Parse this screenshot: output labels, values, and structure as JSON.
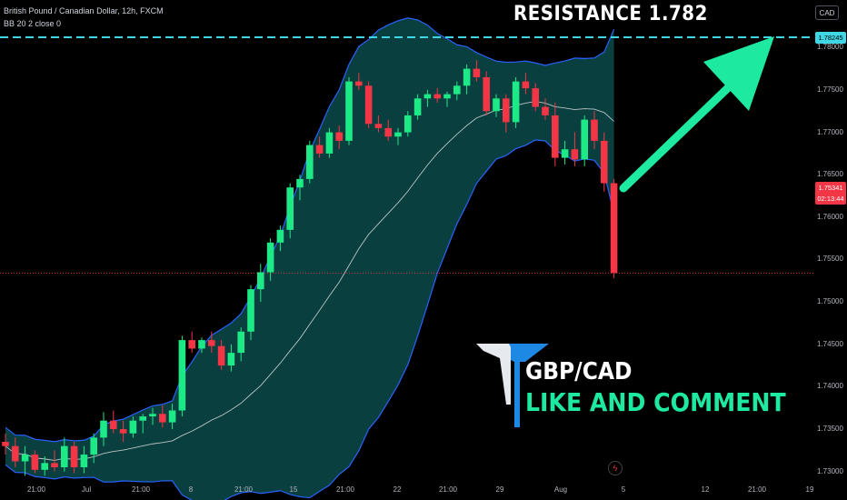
{
  "header": {
    "symbol_title": "British Pound / Canadian Dollar, 12h, FXCM",
    "indicator_title": "BB 20 2 close 0"
  },
  "currency_button": "CAD",
  "annotation": {
    "resistance_label": "RESISTANCE  1.782",
    "pair_label": "GBP/CAD",
    "call_to_action": "LIKE AND COMMENT"
  },
  "price_labels": {
    "resistance_value": "1.78245",
    "current_price": "1.75341",
    "countdown": "02:13:44"
  },
  "colors": {
    "up": "#1de986",
    "down": "#f23645",
    "band_fill": "#0c4a4a",
    "band_line": "#2962ff",
    "resistance_line": "#3fd6e6",
    "arrow": "#1de9a0"
  },
  "chart_data": {
    "type": "candlestick",
    "y_ticks": [
      "1.78000",
      "1.77500",
      "1.77000",
      "1.76500",
      "1.76000",
      "1.75500",
      "1.75000",
      "1.74500",
      "1.74000",
      "1.73500",
      "1.73000"
    ],
    "x_ticks": [
      "21:00",
      "Jul",
      "21:00",
      "8",
      "21:00",
      "15",
      "21:00",
      "22",
      "21:00",
      "29",
      "Aug",
      "5",
      "12",
      "21:00",
      "19"
    ],
    "ylim": [
      1.729,
      1.784
    ],
    "resistance": 1.78245,
    "last_price": 1.75341,
    "candles": [
      [
        1.7335,
        1.7345,
        1.732,
        1.733
      ],
      [
        1.733,
        1.734,
        1.7305,
        1.7312
      ],
      [
        1.7312,
        1.733,
        1.7295,
        1.732
      ],
      [
        1.732,
        1.7325,
        1.7298,
        1.7302
      ],
      [
        1.7302,
        1.7318,
        1.7295,
        1.731
      ],
      [
        1.731,
        1.7325,
        1.73,
        1.7305
      ],
      [
        1.7305,
        1.734,
        1.73,
        1.733
      ],
      [
        1.733,
        1.7335,
        1.7298,
        1.7305
      ],
      [
        1.7305,
        1.733,
        1.7298,
        1.732
      ],
      [
        1.732,
        1.7345,
        1.731,
        1.734
      ],
      [
        1.734,
        1.737,
        1.733,
        1.736
      ],
      [
        1.736,
        1.7372,
        1.7345,
        1.735
      ],
      [
        1.735,
        1.736,
        1.7335,
        1.7345
      ],
      [
        1.7345,
        1.7365,
        1.734,
        1.736
      ],
      [
        1.736,
        1.7368,
        1.7345,
        1.7365
      ],
      [
        1.7365,
        1.7375,
        1.7355,
        1.7368
      ],
      [
        1.7368,
        1.7378,
        1.7352,
        1.7358
      ],
      [
        1.7358,
        1.738,
        1.735,
        1.7372
      ],
      [
        1.7372,
        1.746,
        1.7365,
        1.7455
      ],
      [
        1.7455,
        1.7465,
        1.744,
        1.7445
      ],
      [
        1.7445,
        1.7458,
        1.744,
        1.7455
      ],
      [
        1.7455,
        1.7465,
        1.744,
        1.7448
      ],
      [
        1.7448,
        1.7455,
        1.742,
        1.7425
      ],
      [
        1.7425,
        1.745,
        1.7418,
        1.744
      ],
      [
        1.744,
        1.747,
        1.743,
        1.7465
      ],
      [
        1.7465,
        1.752,
        1.7455,
        1.7515
      ],
      [
        1.7515,
        1.7545,
        1.75,
        1.7535
      ],
      [
        1.7535,
        1.7575,
        1.7525,
        1.757
      ],
      [
        1.757,
        1.759,
        1.756,
        1.7585
      ],
      [
        1.7585,
        1.764,
        1.7575,
        1.7635
      ],
      [
        1.7635,
        1.765,
        1.762,
        1.7645
      ],
      [
        1.7645,
        1.769,
        1.764,
        1.7685
      ],
      [
        1.7685,
        1.7695,
        1.767,
        1.7675
      ],
      [
        1.7675,
        1.7705,
        1.767,
        1.77
      ],
      [
        1.77,
        1.7708,
        1.768,
        1.769
      ],
      [
        1.769,
        1.7765,
        1.7685,
        1.776
      ],
      [
        1.776,
        1.777,
        1.775,
        1.7755
      ],
      [
        1.7755,
        1.776,
        1.7705,
        1.771
      ],
      [
        1.771,
        1.772,
        1.77,
        1.7705
      ],
      [
        1.7705,
        1.7715,
        1.769,
        1.7695
      ],
      [
        1.7695,
        1.7705,
        1.7685,
        1.77
      ],
      [
        1.77,
        1.7725,
        1.7695,
        1.772
      ],
      [
        1.772,
        1.7745,
        1.7715,
        1.774
      ],
      [
        1.774,
        1.775,
        1.773,
        1.7745
      ],
      [
        1.7745,
        1.7752,
        1.7735,
        1.774
      ],
      [
        1.774,
        1.7748,
        1.773,
        1.7745
      ],
      [
        1.7745,
        1.776,
        1.7738,
        1.7755
      ],
      [
        1.7755,
        1.778,
        1.7745,
        1.7775
      ],
      [
        1.7775,
        1.7785,
        1.776,
        1.7765
      ],
      [
        1.7765,
        1.7772,
        1.772,
        1.7725
      ],
      [
        1.7725,
        1.7745,
        1.7718,
        1.774
      ],
      [
        1.774,
        1.7745,
        1.77,
        1.7712
      ],
      [
        1.7712,
        1.7765,
        1.7705,
        1.776
      ],
      [
        1.776,
        1.777,
        1.7745,
        1.7752
      ],
      [
        1.7752,
        1.7758,
        1.7725,
        1.773
      ],
      [
        1.773,
        1.774,
        1.7715,
        1.772
      ],
      [
        1.772,
        1.7735,
        1.766,
        1.767
      ],
      [
        1.767,
        1.769,
        1.7662,
        1.768
      ],
      [
        1.768,
        1.77,
        1.766,
        1.7668
      ],
      [
        1.7668,
        1.772,
        1.766,
        1.7715
      ],
      [
        1.7715,
        1.7725,
        1.768,
        1.769
      ],
      [
        1.769,
        1.77,
        1.763,
        1.764
      ],
      [
        1.764,
        1.7645,
        1.7528,
        1.7534
      ]
    ]
  }
}
